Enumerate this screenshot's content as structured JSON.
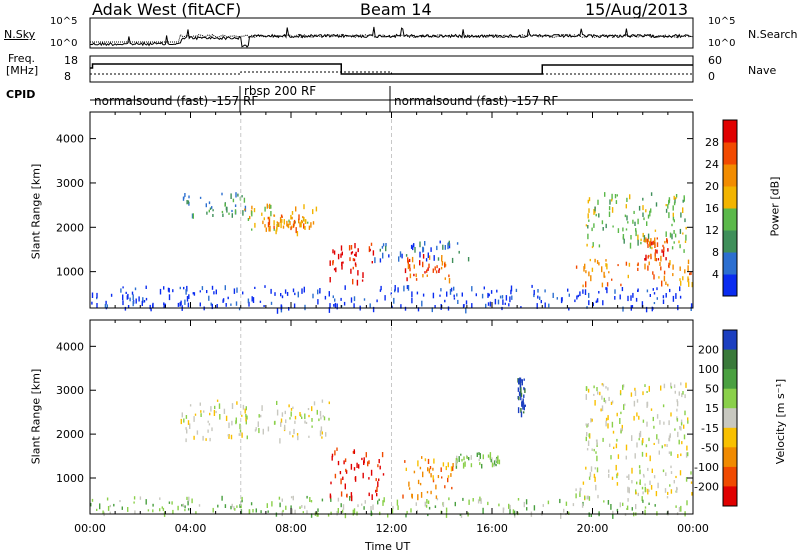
{
  "header": {
    "radar": "Adak West (fitACF)",
    "beam": "Beam 14",
    "date": "15/Aug/2013"
  },
  "top_panels": {
    "nsky_label": "N.Sky",
    "nsky_ticks": [
      "10^5",
      "10^0"
    ],
    "nsearch_label": "N.Search",
    "nsearch_ticks": [
      "10^5",
      "10^0"
    ],
    "freq_label": "Freq.",
    "freq_unit": "[MHz]",
    "freq_ticks": [
      "18",
      "8"
    ],
    "nave_label": "Nave",
    "nave_ticks": [
      "60",
      "0"
    ],
    "cpid_label": "CPID",
    "cpid_segments": [
      {
        "label": "normalsound (fast) -157 RF",
        "start_h": 0,
        "end_h": 6
      },
      {
        "label": "rbsp 200 RF",
        "start_h": 6,
        "end_h": 12
      },
      {
        "label": "normalsound (fast) -157 RF",
        "start_h": 12,
        "end_h": 24
      }
    ]
  },
  "chart_data": [
    {
      "type": "heatmap",
      "panel": "power",
      "xlabel": "",
      "ylabel": "Slant Range [km]",
      "xlim": [
        0,
        24
      ],
      "ylim": [
        180,
        4600
      ],
      "yticks": [
        "1000",
        "2000",
        "3000",
        "4000"
      ],
      "colorbar_label": "Power [dB]",
      "colorbar_ticks": [
        "4",
        "8",
        "12",
        "16",
        "20",
        "24",
        "28"
      ],
      "colorbar_colors": [
        "#0a2cf0",
        "#2c6fd0",
        "#3f8f5a",
        "#5bb84a",
        "#f2b400",
        "#f28c00",
        "#f24a00",
        "#e00000"
      ],
      "regions": [
        {
          "t0": 3.6,
          "t1": 6.2,
          "r0": 2300,
          "r1": 2800,
          "level": 2
        },
        {
          "t0": 6.0,
          "t1": 9.0,
          "r0": 1900,
          "r1": 2600,
          "level": 4
        },
        {
          "t0": 6.8,
          "t1": 8.6,
          "r0": 2000,
          "r1": 2300,
          "level": 5
        },
        {
          "t0": 9.5,
          "t1": 11.3,
          "r0": 800,
          "r1": 1700,
          "level": 7
        },
        {
          "t0": 12.4,
          "t1": 14.3,
          "r0": 800,
          "r1": 1400,
          "level": 6
        },
        {
          "t0": 11.3,
          "t1": 15.2,
          "r0": 1300,
          "r1": 1700,
          "level": 1
        },
        {
          "t0": 19.3,
          "t1": 24.0,
          "r0": 700,
          "r1": 1300,
          "level": 5
        },
        {
          "t0": 19.7,
          "t1": 23.8,
          "r0": 1500,
          "r1": 2800,
          "level": 3
        },
        {
          "t0": 22.0,
          "t1": 23.0,
          "r0": 1300,
          "r1": 1800,
          "level": 6
        },
        {
          "t0": 0.0,
          "t1": 24.0,
          "r0": 180,
          "r1": 700,
          "level": 0
        }
      ]
    },
    {
      "type": "heatmap",
      "panel": "velocity",
      "xlabel": "Time UT",
      "ylabel": "Slant Range [km]",
      "xlim": [
        0,
        24
      ],
      "ylim": [
        180,
        4600
      ],
      "xticks": [
        "00:00",
        "04:00",
        "08:00",
        "12:00",
        "16:00",
        "20:00",
        "00:00"
      ],
      "yticks": [
        "1000",
        "2000",
        "3000",
        "4000"
      ],
      "colorbar_label": "Velocity [m s⁻¹]",
      "colorbar_ticks": [
        "200",
        "100",
        "50",
        "15",
        "-15",
        "-50",
        "-100",
        "-200"
      ],
      "colorbar_colors": [
        "#1c3fc0",
        "#3a7a3a",
        "#4aa040",
        "#8ad04a",
        "#c8c8c0",
        "#f8c000",
        "#f08a00",
        "#f04a00",
        "#e00000"
      ],
      "regions": [
        {
          "t0": 3.6,
          "t1": 9.5,
          "r0": 1900,
          "r1": 2800,
          "level": 4
        },
        {
          "t0": 9.5,
          "t1": 11.7,
          "r0": 600,
          "r1": 1700,
          "level": 8
        },
        {
          "t0": 12.3,
          "t1": 14.5,
          "r0": 600,
          "r1": 1500,
          "level": 6
        },
        {
          "t0": 14.5,
          "t1": 16.4,
          "r0": 1300,
          "r1": 1600,
          "level": 3
        },
        {
          "t0": 19.3,
          "t1": 24.0,
          "r0": 600,
          "r1": 1300,
          "level": 4
        },
        {
          "t0": 19.7,
          "t1": 23.8,
          "r0": 1500,
          "r1": 3200,
          "level": 4
        },
        {
          "t0": 17.0,
          "t1": 17.3,
          "r0": 2500,
          "r1": 3300,
          "level": 0
        },
        {
          "t0": 0.0,
          "t1": 24.0,
          "r0": 180,
          "r1": 600,
          "level": 3
        }
      ]
    }
  ]
}
